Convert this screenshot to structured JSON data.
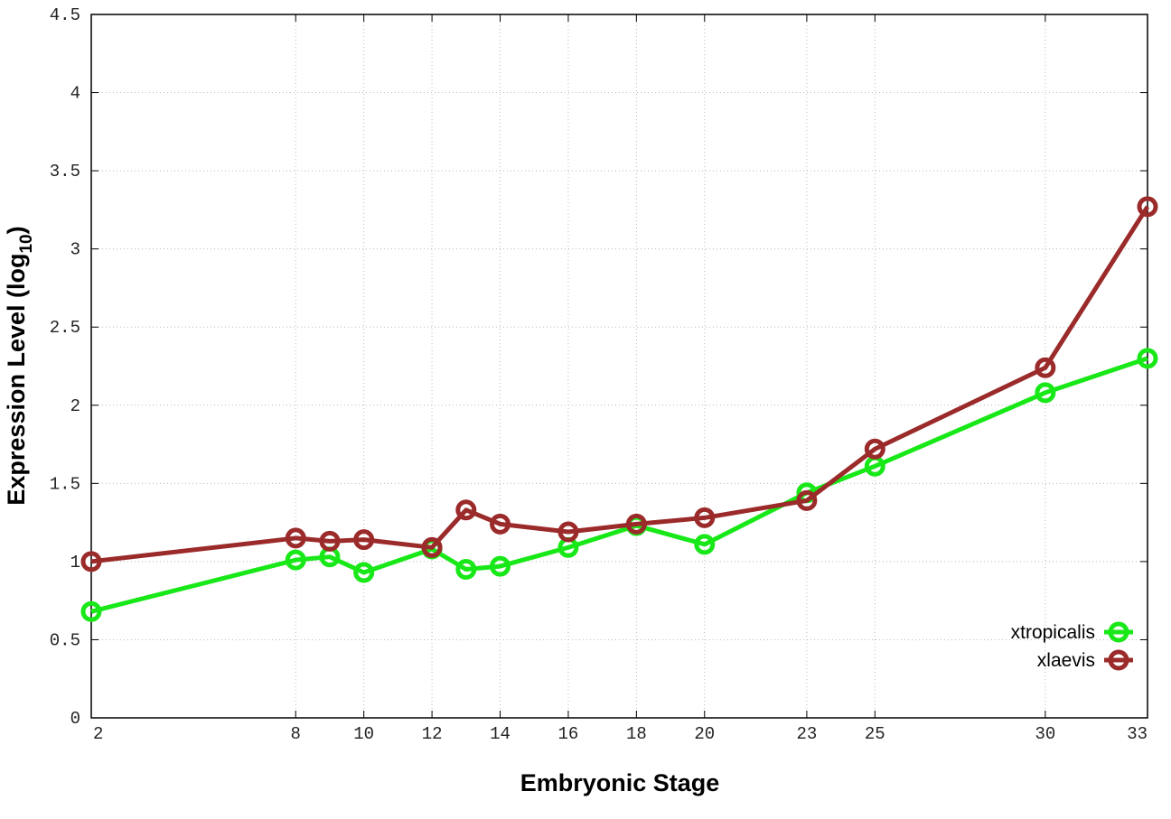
{
  "chart_data": {
    "type": "line",
    "title": "",
    "xlabel": "Embryonic Stage",
    "ylabel": "Expression Level (log",
    "ylabel_subscript": "10",
    "ylabel_suffix": ")",
    "xlim": [
      2,
      33
    ],
    "ylim": [
      0,
      4.5
    ],
    "xticks": [
      2,
      8,
      10,
      12,
      14,
      16,
      18,
      20,
      23,
      25,
      30,
      33
    ],
    "yticks": [
      0,
      0.5,
      1,
      1.5,
      2,
      2.5,
      3,
      3.5,
      4,
      4.5
    ],
    "ytick_labels": [
      "0",
      "0.5",
      "1",
      "1.5",
      "2",
      "2.5",
      "3",
      "3.5",
      "4",
      "4.5"
    ],
    "grid": true,
    "legend_position": "bottom-right",
    "x": [
      2,
      8,
      9,
      10,
      12,
      13,
      14,
      16,
      18,
      20,
      23,
      25,
      30,
      33
    ],
    "series": [
      {
        "name": "xtropicalis",
        "color": "#18e818",
        "values": [
          0.68,
          1.01,
          1.03,
          0.93,
          1.08,
          0.95,
          0.97,
          1.09,
          1.23,
          1.11,
          1.44,
          1.61,
          2.08,
          2.3
        ]
      },
      {
        "name": "xlaevis",
        "color": "#9b2a2a",
        "values": [
          1.0,
          1.15,
          1.13,
          1.14,
          1.09,
          1.33,
          1.24,
          1.19,
          1.24,
          1.28,
          1.39,
          1.72,
          2.24,
          3.27
        ]
      }
    ]
  }
}
